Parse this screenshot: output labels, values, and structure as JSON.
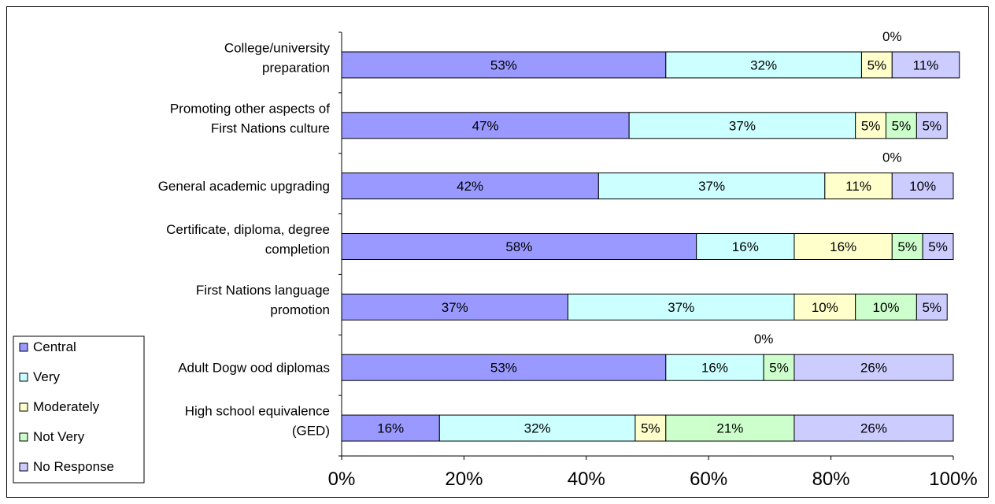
{
  "chart_data": {
    "type": "bar",
    "orientation": "horizontal",
    "stacked": "percent",
    "xlim": [
      0,
      100
    ],
    "x_ticks": [
      "0%",
      "20%",
      "40%",
      "60%",
      "80%",
      "100%"
    ],
    "grid": false,
    "legend_position": "left",
    "categories": [
      [
        "College/university",
        "preparation"
      ],
      [
        "Promoting other aspects of",
        "First Nations culture"
      ],
      [
        "General academic upgrading"
      ],
      [
        "Certificate, diploma, degree",
        "completion"
      ],
      [
        "First Nations language",
        "promotion"
      ],
      [
        "Adult Dogw ood diplomas"
      ],
      [
        "High school equivalence",
        "(GED)"
      ]
    ],
    "series": [
      {
        "name": "Central",
        "color": "#9999FF",
        "values": [
          53,
          47,
          42,
          58,
          37,
          53,
          16
        ],
        "labels": [
          "53%",
          "47%",
          "42%",
          "58%",
          "37%",
          "53%",
          "16%"
        ]
      },
      {
        "name": "Very",
        "color": "#CCFFFF",
        "values": [
          32,
          37,
          37,
          16,
          37,
          16,
          32
        ],
        "labels": [
          "32%",
          "37%",
          "37%",
          "16%",
          "37%",
          "16%",
          "32%"
        ]
      },
      {
        "name": "Moderately",
        "color": "#FFFFCC",
        "values": [
          5,
          5,
          11,
          16,
          10,
          0,
          5
        ],
        "labels": [
          "5%",
          "5%",
          "11%",
          "16%",
          "10%",
          "0%",
          "5%"
        ]
      },
      {
        "name": "Not Very",
        "color": "#CCFFCC",
        "values": [
          0,
          5,
          0,
          5,
          10,
          5,
          21
        ],
        "labels": [
          "0%",
          "5%",
          "0%",
          "5%",
          "10%",
          "5%",
          "21%"
        ]
      },
      {
        "name": "No Response",
        "color": "#CCCCFF",
        "values": [
          11,
          5,
          10,
          5,
          5,
          26,
          26
        ],
        "labels": [
          "11%",
          "5%",
          "10%",
          "5%",
          "5%",
          "26%",
          "26%"
        ]
      }
    ]
  }
}
